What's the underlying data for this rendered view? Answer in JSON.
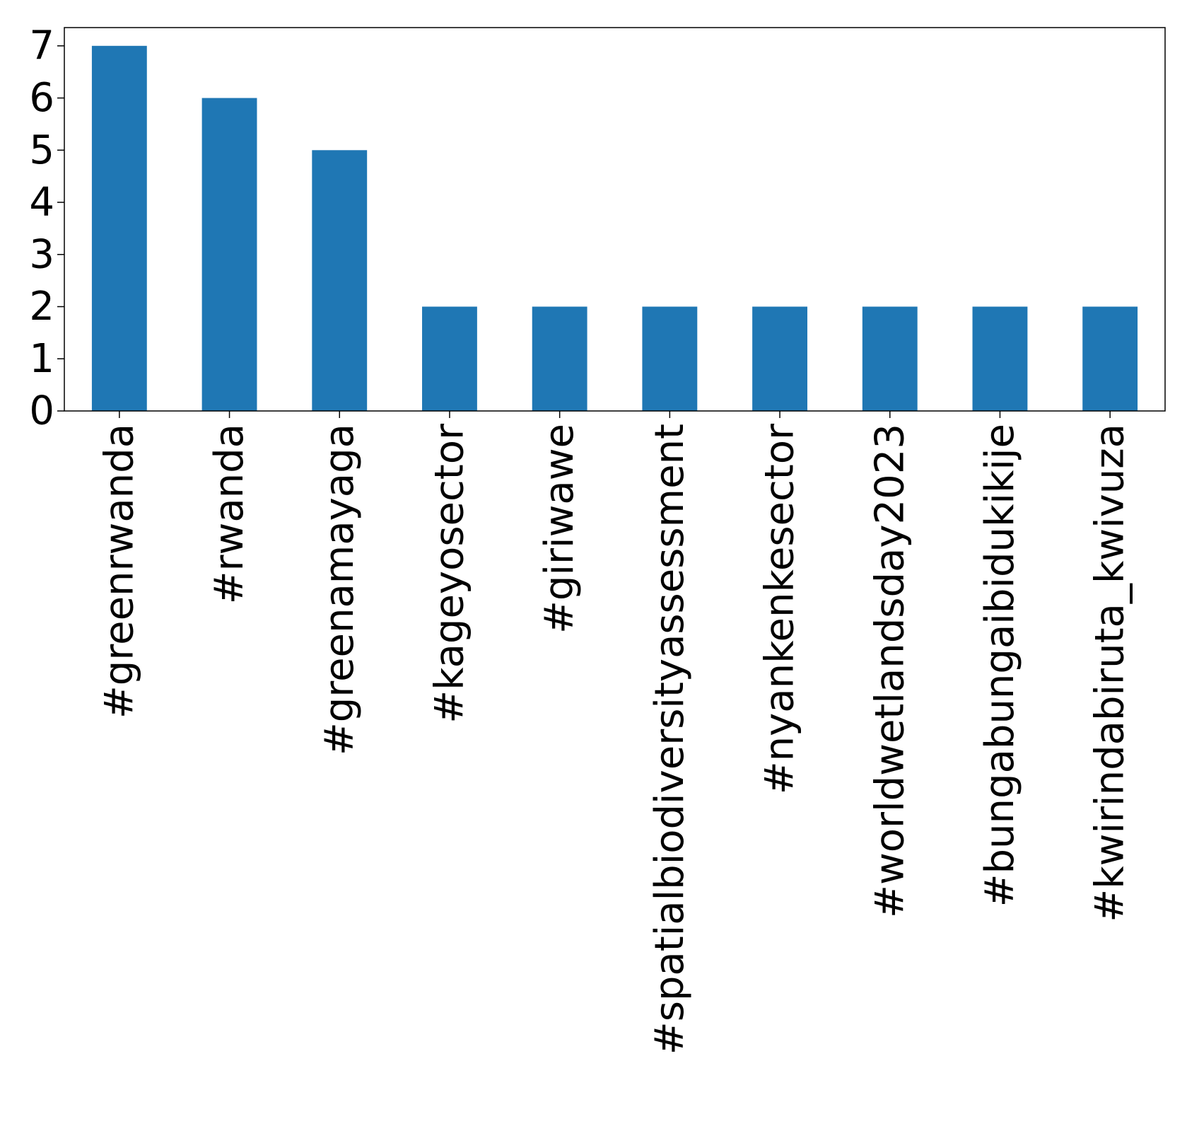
{
  "chart_data": {
    "type": "bar",
    "title": "",
    "xlabel": "",
    "ylabel": "",
    "categories": [
      "#greenrwanda",
      "#rwanda",
      "#greenamayaga",
      "#kageyosector",
      "#giriwawe",
      "#spatialbiodiversityassessment",
      "#nyankenkesector",
      "#worldwetlandsday2023",
      "#bungabungaibidukikije",
      "#kwirindabiruta_kwivuza"
    ],
    "values": [
      7,
      6,
      5,
      2,
      2,
      2,
      2,
      2,
      2,
      2
    ],
    "ylim": [
      0,
      7.35
    ],
    "yticks": [
      0,
      1,
      2,
      3,
      4,
      5,
      6,
      7
    ],
    "bar_color": "#1f77b4",
    "grid": false,
    "legend": "none"
  }
}
